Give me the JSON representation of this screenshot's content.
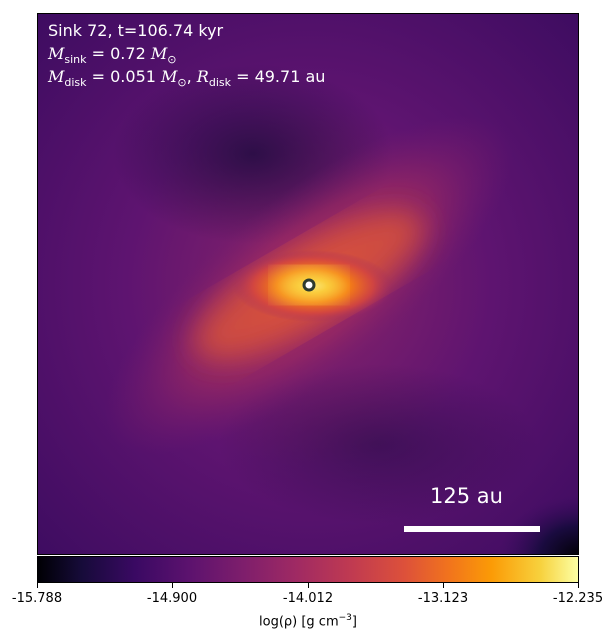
{
  "annotation": {
    "line1": "Sink 72, t=106.74 kyr",
    "msink_symbol": "M",
    "msink_sub": "sink",
    "msink_value": "= 0.72",
    "msun_symbol": "M",
    "msun_sub": "⊙",
    "mdisk_symbol": "M",
    "mdisk_sub": "disk",
    "mdisk_value": "= 0.051",
    "rdisk_symbol": "R",
    "rdisk_sub": "disk",
    "rdisk_value": "= 49.71 au"
  },
  "scale_bar": {
    "label": "125 au"
  },
  "colorbar": {
    "colormap": "inferno",
    "ticks": [
      "-15.788",
      "-14.900",
      "-14.012",
      "-13.123",
      "-12.235"
    ],
    "label_main": "log(ρ) [g cm",
    "label_sup": "−3",
    "label_end": "]"
  },
  "sink_marker": {
    "fill": "#ffffff",
    "stroke": "#2e3b2e"
  }
}
